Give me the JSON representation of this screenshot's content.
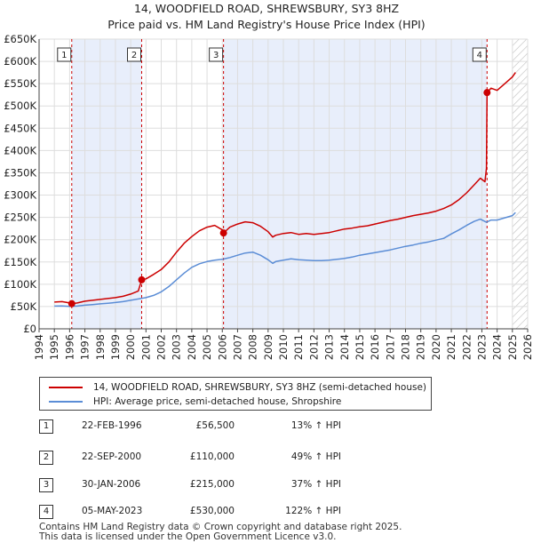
{
  "title_line1": "14, WOODFIELD ROAD, SHREWSBURY, SY3 8HZ",
  "title_line2": "Price paid vs. HM Land Registry's House Price Index (HPI)",
  "colors": {
    "property": "#cc0000",
    "hpi": "#5b8dd6",
    "shade": "#e8eefb",
    "grid": "#dddddd",
    "hatch": "#bbbbbb"
  },
  "legend": {
    "property_label": "14, WOODFIELD ROAD, SHREWSBURY, SY3 8HZ (semi-detached house)",
    "hpi_label": "HPI: Average price, semi-detached house, Shropshire"
  },
  "transactions": [
    {
      "num": "1",
      "date": "22-FEB-1996",
      "price": "£56,500",
      "hpi": "13% ↑ HPI"
    },
    {
      "num": "2",
      "date": "22-SEP-2000",
      "price": "£110,000",
      "hpi": "49% ↑ HPI"
    },
    {
      "num": "3",
      "date": "30-JAN-2006",
      "price": "£215,000",
      "hpi": "37% ↑ HPI"
    },
    {
      "num": "4",
      "date": "05-MAY-2023",
      "price": "£530,000",
      "hpi": "122% ↑ HPI"
    }
  ],
  "footer_line1": "Contains HM Land Registry data © Crown copyright and database right 2025.",
  "footer_line2": "This data is licensed under the Open Government Licence v3.0.",
  "chart_data": {
    "type": "line",
    "title": "14, WOODFIELD ROAD, SHREWSBURY, SY3 8HZ",
    "subtitle": "Price paid vs. HM Land Registry's House Price Index (HPI)",
    "xlabel": "",
    "ylabel": "",
    "xlim": [
      1994,
      2026
    ],
    "ylim": [
      0,
      650000
    ],
    "x_ticks": [
      1994,
      1995,
      1996,
      1997,
      1998,
      1999,
      2000,
      2001,
      2002,
      2003,
      2004,
      2005,
      2006,
      2007,
      2008,
      2009,
      2010,
      2011,
      2012,
      2013,
      2014,
      2015,
      2016,
      2017,
      2018,
      2019,
      2020,
      2021,
      2022,
      2023,
      2024,
      2025,
      2026
    ],
    "y_ticks": [
      0,
      50000,
      100000,
      150000,
      200000,
      250000,
      300000,
      350000,
      400000,
      450000,
      500000,
      550000,
      600000,
      650000
    ],
    "y_tick_labels": [
      "£0",
      "£50K",
      "£100K",
      "£150K",
      "£200K",
      "£250K",
      "£300K",
      "£350K",
      "£400K",
      "£450K",
      "£500K",
      "£550K",
      "£600K",
      "£650K"
    ],
    "hatched_future_from": 2025.0,
    "shaded_ranges": [
      [
        1996.14,
        2000.72
      ],
      [
        2006.08,
        2023.34
      ]
    ],
    "sales": [
      {
        "label": "1",
        "x": 1996.14,
        "y": 56500
      },
      {
        "label": "2",
        "x": 2000.72,
        "y": 110000
      },
      {
        "label": "3",
        "x": 2006.08,
        "y": 215000
      },
      {
        "label": "4",
        "x": 2023.34,
        "y": 530000
      }
    ],
    "series": [
      {
        "name": "14, WOODFIELD ROAD, SHREWSBURY, SY3 8HZ (semi-detached house)",
        "x": [
          1995.0,
          1995.5,
          1996.0,
          1996.14,
          1996.5,
          1997.0,
          1997.5,
          1998.0,
          1998.5,
          1999.0,
          1999.5,
          2000.0,
          2000.5,
          2000.72,
          2001.0,
          2001.5,
          2002.0,
          2002.5,
          2003.0,
          2003.5,
          2004.0,
          2004.5,
          2005.0,
          2005.5,
          2006.0,
          2006.08,
          2006.5,
          2007.0,
          2007.5,
          2008.0,
          2008.5,
          2009.0,
          2009.3,
          2009.5,
          2010.0,
          2010.5,
          2011.0,
          2011.5,
          2012.0,
          2012.5,
          2013.0,
          2013.5,
          2014.0,
          2014.5,
          2015.0,
          2015.5,
          2016.0,
          2016.5,
          2017.0,
          2017.5,
          2018.0,
          2018.5,
          2019.0,
          2019.5,
          2020.0,
          2020.5,
          2021.0,
          2021.5,
          2022.0,
          2022.5,
          2022.9,
          2023.2,
          2023.3,
          2023.34,
          2023.6,
          2024.0,
          2024.5,
          2025.0,
          2025.2
        ],
        "values": [
          60000,
          61000,
          58000,
          56500,
          58000,
          62000,
          64000,
          66000,
          68000,
          70000,
          73000,
          78000,
          85000,
          110000,
          112000,
          122000,
          133000,
          150000,
          172000,
          192000,
          207000,
          220000,
          228000,
          232000,
          222000,
          215000,
          228000,
          235000,
          240000,
          238000,
          230000,
          218000,
          206000,
          210000,
          214000,
          216000,
          212000,
          214000,
          212000,
          214000,
          216000,
          220000,
          224000,
          226000,
          229000,
          231000,
          235000,
          239000,
          243000,
          246000,
          250000,
          254000,
          257000,
          260000,
          264000,
          270000,
          278000,
          290000,
          305000,
          323000,
          338000,
          330000,
          360000,
          530000,
          540000,
          535000,
          550000,
          565000,
          575000
        ]
      },
      {
        "name": "HPI: Average price, semi-detached house, Shropshire",
        "x": [
          1995.0,
          1995.5,
          1996.0,
          1996.5,
          1997.0,
          1997.5,
          1998.0,
          1998.5,
          1999.0,
          1999.5,
          2000.0,
          2000.5,
          2001.0,
          2001.5,
          2002.0,
          2002.5,
          2003.0,
          2003.5,
          2004.0,
          2004.5,
          2005.0,
          2005.5,
          2006.0,
          2006.5,
          2007.0,
          2007.5,
          2008.0,
          2008.5,
          2009.0,
          2009.3,
          2009.5,
          2010.0,
          2010.5,
          2011.0,
          2011.5,
          2012.0,
          2012.5,
          2013.0,
          2013.5,
          2014.0,
          2014.5,
          2015.0,
          2015.5,
          2016.0,
          2016.5,
          2017.0,
          2017.5,
          2018.0,
          2018.5,
          2019.0,
          2019.5,
          2020.0,
          2020.5,
          2021.0,
          2021.5,
          2022.0,
          2022.5,
          2022.9,
          2023.3,
          2023.6,
          2024.0,
          2024.5,
          2025.0,
          2025.2
        ],
        "values": [
          51000,
          51500,
          50500,
          51000,
          53000,
          54500,
          56000,
          57500,
          59000,
          61000,
          64000,
          67000,
          70000,
          75000,
          83000,
          95000,
          110000,
          125000,
          138000,
          146000,
          151000,
          154000,
          156000,
          160000,
          165000,
          170000,
          172000,
          165000,
          155000,
          147000,
          151000,
          154000,
          157000,
          155000,
          154000,
          153000,
          153000,
          154000,
          156000,
          158000,
          161000,
          165000,
          168000,
          171000,
          174000,
          177000,
          181000,
          185000,
          188000,
          192000,
          195000,
          199000,
          203000,
          213000,
          222000,
          232000,
          241000,
          246000,
          239000,
          244000,
          244000,
          249000,
          254000,
          261000
        ]
      }
    ]
  }
}
